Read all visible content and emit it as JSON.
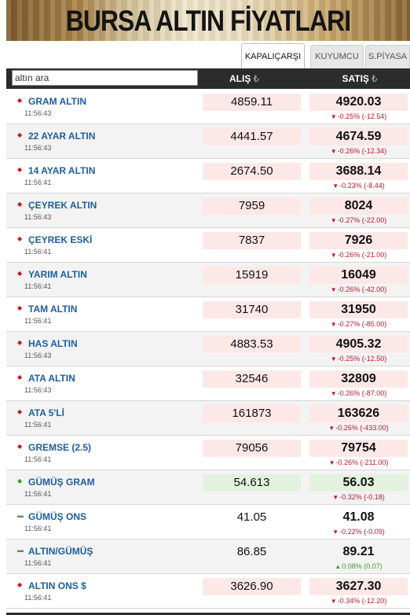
{
  "banner": {
    "title": "BURSA ALTIN FİYATLARI"
  },
  "tabs": [
    {
      "label": "KAPALIÇARŞI",
      "active": true
    },
    {
      "label": "KUYUMCU",
      "active": false
    },
    {
      "label": "S.PİYASA",
      "active": false
    }
  ],
  "table_header": {
    "search_placeholder": "altın ara",
    "buy_label": "ALIŞ",
    "sell_label": "SATIŞ",
    "currency_symbol": "₺"
  },
  "colors": {
    "down": "#d0102a",
    "up": "#3a9d2a",
    "header_bg": "#2c2c2c",
    "name_blue": "#1c5ea3"
  },
  "rows": [
    {
      "name": "GRAM ALTIN",
      "time": "11:56:43",
      "buy": "4859.11",
      "sell": "4920.03",
      "direction": "down",
      "change": "-0.25% (-12.54)"
    },
    {
      "name": "22 AYAR ALTIN",
      "time": "11:56:43",
      "buy": "4441.57",
      "sell": "4674.59",
      "direction": "down",
      "change": "-0.26% (-12.34)"
    },
    {
      "name": "14 AYAR ALTIN",
      "time": "11:56:41",
      "buy": "2674.50",
      "sell": "3688.14",
      "direction": "down",
      "change": "-0.23% (-8.44)"
    },
    {
      "name": "ÇEYREK ALTIN",
      "time": "11:56:43",
      "buy": "7959",
      "sell": "8024",
      "direction": "down",
      "change": "-0.27% (-22.00)"
    },
    {
      "name": "ÇEYREK ESKİ",
      "time": "11:56:41",
      "buy": "7837",
      "sell": "7926",
      "direction": "down",
      "change": "-0.26% (-21.00)"
    },
    {
      "name": "YARIM ALTIN",
      "time": "11:56:41",
      "buy": "15919",
      "sell": "16049",
      "direction": "down",
      "change": "-0.26% (-42.00)"
    },
    {
      "name": "TAM ALTIN",
      "time": "11:56:41",
      "buy": "31740",
      "sell": "31950",
      "direction": "down",
      "change": "-0.27% (-85.00)"
    },
    {
      "name": "HAS ALTIN",
      "time": "11:56:43",
      "buy": "4883.53",
      "sell": "4905.32",
      "direction": "down",
      "change": "-0.25% (-12.50)"
    },
    {
      "name": "ATA ALTIN",
      "time": "11:56:43",
      "buy": "32546",
      "sell": "32809",
      "direction": "down",
      "change": "-0.26% (-87.00)"
    },
    {
      "name": "ATA 5'Lİ",
      "time": "11:56:41",
      "buy": "161873",
      "sell": "163626",
      "direction": "down",
      "change": "-0.26% (-433.00)"
    },
    {
      "name": "GREMSE (2.5)",
      "time": "11:56:41",
      "buy": "79056",
      "sell": "79754",
      "direction": "down",
      "change": "-0.26% (-211.00)"
    },
    {
      "name": "GÜMÜŞ GRAM",
      "time": "11:56:41",
      "buy": "54.613",
      "sell": "56.03",
      "direction": "up",
      "change": "-0.32% (-0.18)"
    },
    {
      "name": "GÜMÜŞ ONS",
      "time": "11:56:41",
      "buy": "41.05",
      "sell": "41.08",
      "direction": "flat",
      "change": "-0.22% (-0.09)"
    },
    {
      "name": "ALTIN/GÜMÜŞ",
      "time": "11:56:41",
      "buy": "86.85",
      "sell": "89.21",
      "direction": "flat",
      "change": "0.08% (0.07)",
      "change_direction": "up"
    },
    {
      "name": "ALTIN ONS $",
      "time": "11:56:41",
      "buy": "3626.90",
      "sell": "3627.30",
      "direction": "down",
      "change": "-0.34% (-12.20)"
    }
  ]
}
